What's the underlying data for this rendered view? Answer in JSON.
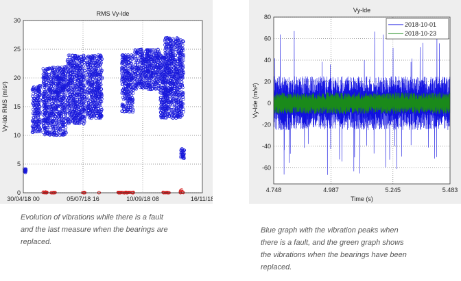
{
  "chart_data": [
    {
      "type": "scatter",
      "title": "RMS Vy-lde",
      "xlabel": "",
      "ylabel": "Vy-lde RMS  (m/s²)",
      "xlim": [
        "2018-04-30T00:00",
        "2018-11-16T00:00"
      ],
      "ylim": [
        0,
        30
      ],
      "xticks": [
        "30/04/18 00",
        "05/07/18 16",
        "10/09/18 08",
        "16/11/18"
      ],
      "yticks": [
        "0",
        "5",
        "10",
        "15",
        "20",
        "25",
        "30"
      ],
      "grid": true,
      "series": [
        {
          "color": "#1a1adb",
          "clusters": [
            {
              "from": "2018-05-01",
              "to": "2018-05-02",
              "ymin": 3.5,
              "ymax": 4.2
            },
            {
              "from": "2018-05-10",
              "to": "2018-05-18",
              "ymin": 10.5,
              "ymax": 18.7
            },
            {
              "from": "2018-05-22",
              "to": "2018-06-16",
              "ymin": 10,
              "ymax": 22
            },
            {
              "from": "2018-06-18",
              "to": "2018-07-07",
              "ymin": 12,
              "ymax": 24
            },
            {
              "from": "2018-07-10",
              "to": "2018-07-26",
              "ymin": 13,
              "ymax": 24
            },
            {
              "from": "2018-08-18",
              "to": "2018-08-30",
              "ymin": 14,
              "ymax": 24
            },
            {
              "from": "2018-09-01",
              "to": "2018-09-29",
              "ymin": 18,
              "ymax": 25
            },
            {
              "from": "2018-09-30",
              "to": "2018-10-05",
              "ymin": 13,
              "ymax": 24
            },
            {
              "from": "2018-10-05",
              "to": "2018-10-25",
              "ymin": 13,
              "ymax": 27
            },
            {
              "from": "2018-10-23",
              "to": "2018-10-26",
              "ymin": 6,
              "ymax": 7.7
            }
          ]
        },
        {
          "color": "#d42020",
          "clusters": [
            {
              "from": "2018-05-22",
              "to": "2018-05-27",
              "ymin": 0,
              "ymax": 0.2
            },
            {
              "from": "2018-05-31",
              "to": "2018-06-04",
              "ymin": 0,
              "ymax": 0.1
            },
            {
              "from": "2018-07-05",
              "to": "2018-07-07",
              "ymin": 0,
              "ymax": 0.1
            },
            {
              "from": "2018-07-23",
              "to": "2018-07-23",
              "ymin": 0,
              "ymax": 0.1
            },
            {
              "from": "2018-08-13",
              "to": "2018-08-30",
              "ymin": 0,
              "ymax": 0.1
            },
            {
              "from": "2018-10-03",
              "to": "2018-10-09",
              "ymin": 0,
              "ymax": 0.1
            },
            {
              "from": "2018-10-22",
              "to": "2018-10-25",
              "ymin": 0,
              "ymax": 1
            }
          ]
        }
      ]
    },
    {
      "type": "line",
      "title": "Vy-lde",
      "xlabel": "Time (s)",
      "ylabel": "Vy-lde (m/s²)",
      "xlim": [
        4.748,
        5.483
      ],
      "ylim": [
        -75,
        80
      ],
      "xticks": [
        "4.748",
        "4.987",
        "5.245",
        "5.483"
      ],
      "yticks": [
        "80",
        "60",
        "40",
        "20",
        "0",
        "-20",
        "-40",
        "-60"
      ],
      "grid": true,
      "legend": "top-right",
      "series": [
        {
          "name": "2018-10-01",
          "color": "#1010e0",
          "typical_amplitude": 25,
          "peak_max": 71,
          "peak_min": -68
        },
        {
          "name": "2018-10-23",
          "color": "#1a8a1a",
          "typical_amplitude": 10,
          "peak_max": 14,
          "peak_min": -14
        }
      ]
    }
  ],
  "captions": {
    "left": [
      "Evolution of vibrations while there is a fault",
      "and the last measure when the bearings are",
      "replaced."
    ],
    "right": [
      "Blue graph with the vibration peaks when",
      "there is a fault, and the green graph shows",
      "the vibrations when the bearings have been",
      "replaced."
    ]
  }
}
